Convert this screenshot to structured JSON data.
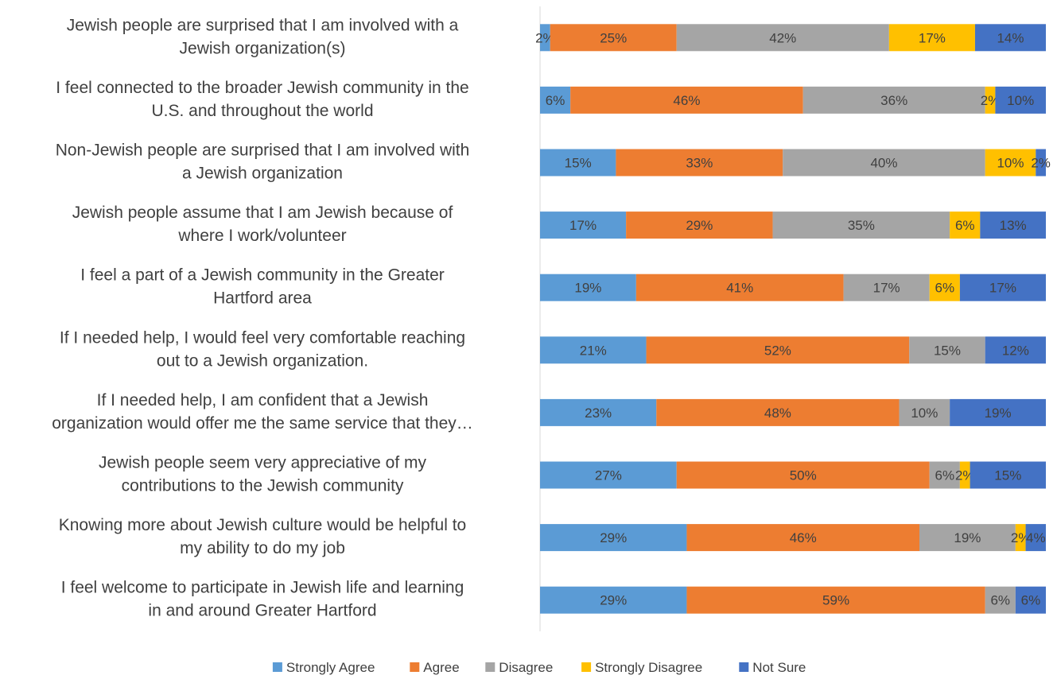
{
  "chart_data": {
    "type": "bar",
    "orientation": "horizontal",
    "stacked": true,
    "normalized": true,
    "categories": [
      [
        "Jewish people are surprised that I am involved with a",
        "Jewish organization(s)"
      ],
      [
        "I feel connected to the broader Jewish community in the",
        "U.S. and throughout the world"
      ],
      [
        "Non-Jewish people are surprised that I am involved with",
        "a  Jewish organization"
      ],
      [
        "Jewish people assume that I am Jewish because of",
        "where I work/volunteer"
      ],
      [
        "I feel a part of a Jewish community in the Greater",
        "Hartford area"
      ],
      [
        "If I needed help, I would feel very comfortable reaching",
        "out to a Jewish organization."
      ],
      [
        "If I needed help, I am confident that a Jewish",
        "organization would offer me the same service that they…"
      ],
      [
        "Jewish people seem very appreciative of my",
        "contributions to the Jewish community"
      ],
      [
        "Knowing more about Jewish culture would be helpful to",
        "my ability to do my job"
      ],
      [
        "I feel welcome to participate in Jewish life and learning",
        "in and around Greater Hartford"
      ]
    ],
    "series": [
      {
        "name": "Strongly Agree",
        "color": "#5B9BD5",
        "values": [
          2,
          6,
          15,
          17,
          19,
          21,
          23,
          27,
          29,
          29
        ]
      },
      {
        "name": "Agree",
        "color": "#ED7D31",
        "values": [
          25,
          46,
          33,
          29,
          41,
          52,
          48,
          50,
          46,
          59
        ]
      },
      {
        "name": "Disagree",
        "color": "#A5A5A5",
        "values": [
          42,
          36,
          40,
          35,
          17,
          15,
          10,
          6,
          19,
          6
        ]
      },
      {
        "name": "Strongly Disagree",
        "color": "#FFC000",
        "values": [
          17,
          2,
          10,
          6,
          6,
          0,
          0,
          2,
          2,
          0
        ]
      },
      {
        "name": "Not Sure",
        "color": "#4472C4",
        "values": [
          14,
          10,
          2,
          13,
          17,
          12,
          19,
          15,
          4,
          6
        ]
      }
    ],
    "legend_position": "bottom",
    "grid": false
  }
}
